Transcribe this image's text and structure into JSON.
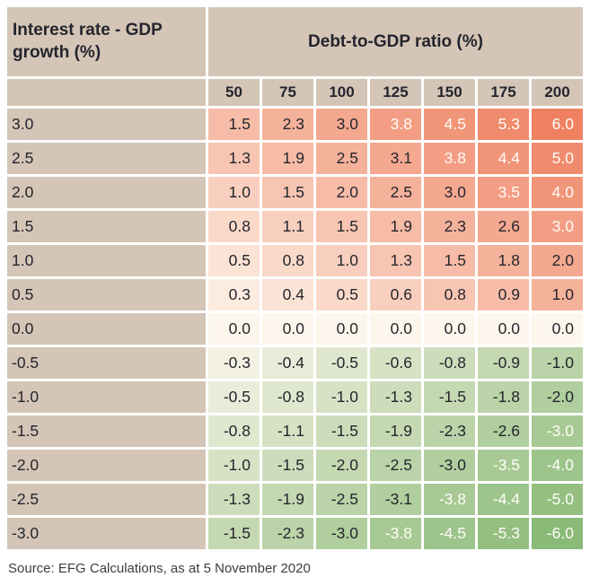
{
  "table": {
    "corner_header": "Interest rate - GDP growth (%)",
    "top_header": "Debt-to-GDP ratio (%)",
    "source_note": "Source: EFG Calculations, as at 5 November 2020"
  },
  "chart_data": {
    "type": "heatmap",
    "title": "Debt-to-GDP ratio (%)",
    "row_axis_label": "Interest rate - GDP growth (%)",
    "columns": [
      "50",
      "75",
      "100",
      "125",
      "150",
      "175",
      "200"
    ],
    "rows": [
      "3.0",
      "2.5",
      "2.0",
      "1.5",
      "1.0",
      "0.5",
      "0.0",
      "-0.5",
      "-1.0",
      "-1.5",
      "-2.0",
      "-2.5",
      "-3.0"
    ],
    "values": [
      [
        "1.5",
        "2.3",
        "3.0",
        "3.8",
        "4.5",
        "5.3",
        "6.0"
      ],
      [
        "1.3",
        "1.9",
        "2.5",
        "3.1",
        "3.8",
        "4.4",
        "5.0"
      ],
      [
        "1.0",
        "1.5",
        "2.0",
        "2.5",
        "3.0",
        "3.5",
        "4.0"
      ],
      [
        "0.8",
        "1.1",
        "1.5",
        "1.9",
        "2.3",
        "2.6",
        "3.0"
      ],
      [
        "0.5",
        "0.8",
        "1.0",
        "1.3",
        "1.5",
        "1.8",
        "2.0"
      ],
      [
        "0.3",
        "0.4",
        "0.5",
        "0.6",
        "0.8",
        "0.9",
        "1.0"
      ],
      [
        "0.0",
        "0.0",
        "0.0",
        "0.0",
        "0.0",
        "0.0",
        "0.0"
      ],
      [
        "-0.3",
        "-0.4",
        "-0.5",
        "-0.6",
        "-0.8",
        "-0.9",
        "-1.0"
      ],
      [
        "-0.5",
        "-0.8",
        "-1.0",
        "-1.3",
        "-1.5",
        "-1.8",
        "-2.0"
      ],
      [
        "-0.8",
        "-1.1",
        "-1.5",
        "-1.9",
        "-2.3",
        "-2.6",
        "-3.0"
      ],
      [
        "-1.0",
        "-1.5",
        "-2.0",
        "-2.5",
        "-3.0",
        "-3.5",
        "-4.0"
      ],
      [
        "-1.3",
        "-1.9",
        "-2.5",
        "-3.1",
        "-3.8",
        "-4.4",
        "-5.0"
      ],
      [
        "-1.5",
        "-2.3",
        "-3.0",
        "-3.8",
        "-4.5",
        "-5.3",
        "-6.0"
      ]
    ],
    "legend_position": "none",
    "grid": "white 3px separators"
  },
  "colors": {
    "header_bg": "#d4c5b7",
    "positive_max": "#ef8161",
    "negative_max": "#8aba77",
    "neutral": "#fdf6ec",
    "text_dark": "#24252d",
    "text_light": "#fffdf7",
    "source_text": "#3d3d3d",
    "page_bg": "#ffffff"
  }
}
